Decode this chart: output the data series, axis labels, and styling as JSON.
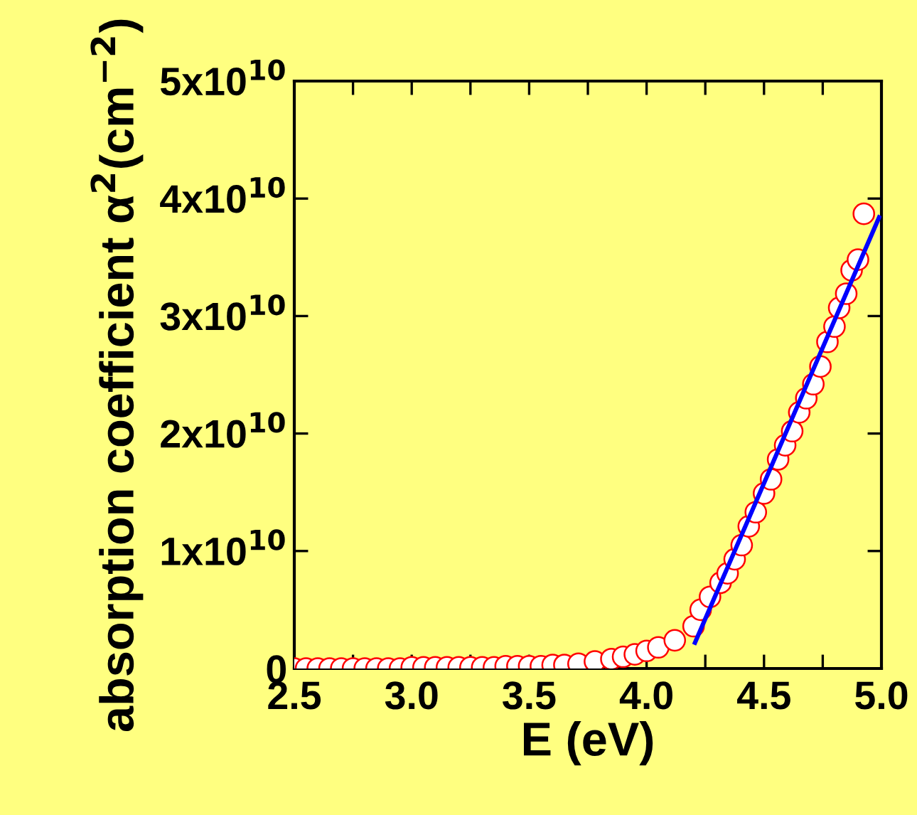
{
  "chart_data": {
    "type": "scatter",
    "xlabel": "E (eV)",
    "ylabel": "absorption coefficient α$^{2}$(cm$^{−2}$)",
    "xlim": [
      2.5,
      5.0
    ],
    "ylim": [
      0,
      50000000000.0
    ],
    "xticks": [
      2.5,
      {
        "value": 2.75,
        "label": null
      },
      {
        "value": 3,
        "label": "3.0"
      },
      {
        "value": 3.25,
        "label": null
      },
      3.5,
      {
        "value": 3.75,
        "label": null
      },
      {
        "value": 4,
        "label": "4.0"
      },
      {
        "value": 4.25,
        "label": null
      },
      4.5,
      {
        "value": 4.75,
        "label": null
      },
      {
        "value": 5,
        "label": "5.0"
      }
    ],
    "yticks": [
      0,
      {
        "value": 10000000000.0,
        "label": "1x10$^{10}$"
      },
      {
        "value": 20000000000.0,
        "label": "2x10$^{10}$"
      },
      {
        "value": 30000000000.0,
        "label": "3x10$^{10}$"
      },
      {
        "value": 40000000000.0,
        "label": "4x10$^{10}$"
      },
      {
        "value": 50000000000.0,
        "label": "5x10$^{10}$"
      }
    ],
    "grid": false,
    "legend": false,
    "series": [
      {
        "color": "#ff0000",
        "marker": "circle",
        "x": [
          2.5,
          2.55,
          2.6,
          2.65,
          2.7,
          2.75,
          2.8,
          2.85,
          2.9,
          2.95,
          3.0,
          3.05,
          3.1,
          3.15,
          3.2,
          3.25,
          3.3,
          3.35,
          3.4,
          3.45,
          3.5,
          3.55,
          3.6,
          3.65,
          3.71,
          3.78,
          3.85,
          3.9,
          3.95,
          4.0,
          4.05,
          4.12,
          4.2,
          4.23,
          4.27,
          4.315,
          4.345,
          4.375,
          4.405,
          4.435,
          4.465,
          4.5,
          4.53,
          4.56,
          4.59,
          4.62,
          4.65,
          4.68,
          4.71,
          4.74,
          4.77,
          4.8,
          4.82,
          4.85,
          4.873,
          4.9,
          4.925
        ],
        "values": [
          0,
          0,
          0,
          0,
          0,
          0,
          0,
          0,
          0,
          0,
          100000000.0,
          100000000.0,
          100000000.0,
          100000000.0,
          100000000.0,
          100000000.0,
          100000000.0,
          100000000.0,
          200000000.0,
          200000000.0,
          200000000.0,
          200000000.0,
          300000000.0,
          300000000.0,
          400000000.0,
          600000000.0,
          800000000.0,
          1000000000.0,
          1200000000.0,
          1500000000.0,
          1800000000.0,
          2400000000.0,
          3600000000.0,
          5000000000.0,
          6100000000.0,
          7300000000.0,
          8100000000.0,
          9300000000.0,
          10500000000.0,
          12100000000.0,
          13300000000.0,
          14900000000.0,
          16100000000.0,
          17800000000.0,
          19000000000.0,
          20200000000.0,
          21800000000.0,
          23000000000.0,
          24200000000.0,
          25700000000.0,
          27800000000.0,
          29100000000.0,
          30700000000.0,
          31900000000.0,
          33900000000.0,
          34800000000.0,
          38700000000.0
        ]
      },
      {
        "type": "line",
        "color": "#0000ff",
        "marker": "none",
        "line_style": "solid",
        "x": [
          4.206,
          4.99
        ],
        "values": [
          2200000000.0,
          38400000000.0
        ]
      }
    ]
  }
}
